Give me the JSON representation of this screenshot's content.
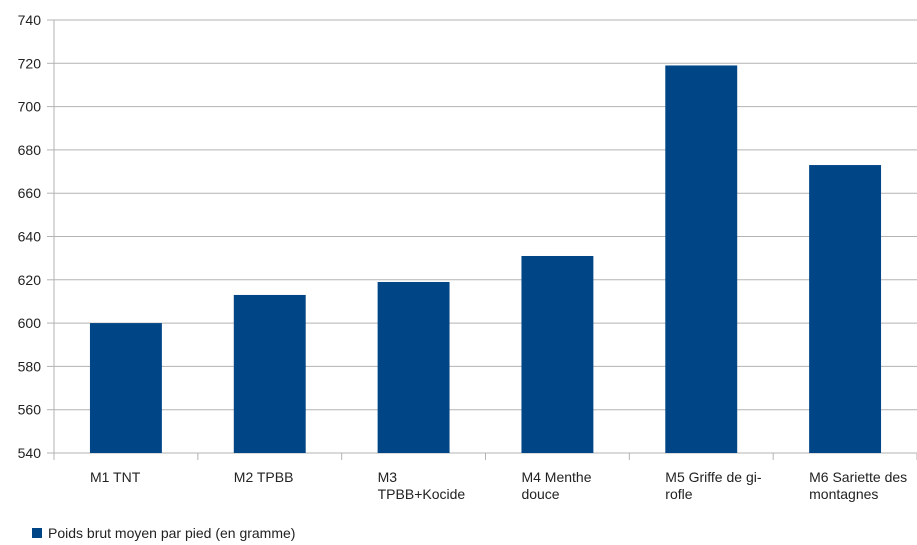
{
  "chart_data": {
    "type": "bar",
    "title": "",
    "xlabel": "",
    "ylabel": "",
    "categories": [
      [
        "M1 TNT"
      ],
      [
        "M2 TPBB"
      ],
      [
        "M3",
        "TPBB+Kocide"
      ],
      [
        "M4 Menthe",
        "douce"
      ],
      [
        "M5 Griffe de gi-",
        "rofle"
      ],
      [
        "M6 Sariette des",
        "montagnes"
      ]
    ],
    "series": [
      {
        "name": "Poids brut moyen par pied (en gramme)",
        "values": [
          600,
          613,
          619,
          631,
          719,
          673
        ],
        "color": "#004586"
      }
    ],
    "ylim": [
      540,
      740
    ],
    "yticks": [
      540,
      560,
      580,
      600,
      620,
      640,
      660,
      680,
      700,
      720,
      740
    ],
    "grid": true,
    "legend_position": "bottom-left"
  }
}
